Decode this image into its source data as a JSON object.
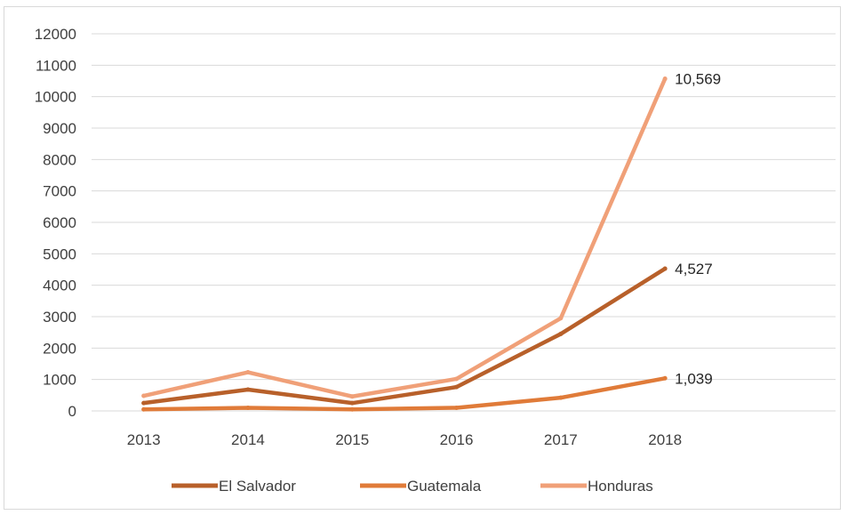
{
  "chart_data": {
    "type": "line",
    "title": "",
    "xlabel": "",
    "ylabel": "",
    "categories": [
      "2013",
      "2014",
      "2015",
      "2016",
      "2017",
      "2018"
    ],
    "ylim": [
      0,
      12000
    ],
    "yticks": [
      "0",
      "1000",
      "2000",
      "3000",
      "4000",
      "5000",
      "6000",
      "7000",
      "8000",
      "9000",
      "10000",
      "11000",
      "12000"
    ],
    "grid": true,
    "legend_position": "bottom",
    "series": [
      {
        "name": "El Salvador",
        "color": "#b8602a",
        "values": [
          250,
          680,
          250,
          760,
          2450,
          4527
        ],
        "end_label": "4,527"
      },
      {
        "name": "Guatemala",
        "color": "#e07b39",
        "values": [
          50,
          100,
          50,
          100,
          420,
          1039
        ],
        "end_label": "1,039"
      },
      {
        "name": "Honduras",
        "color": "#f0a078",
        "values": [
          480,
          1230,
          460,
          1020,
          2950,
          10569
        ],
        "end_label": "10,569"
      }
    ]
  }
}
